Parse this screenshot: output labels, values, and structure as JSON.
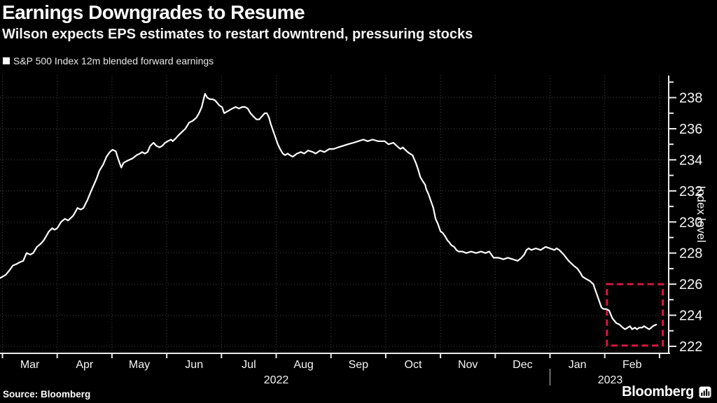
{
  "header": {
    "title": "Earnings Downgrades to Resume",
    "subtitle": "Wilson expects EPS estimates to restart downtrend, pressuring stocks"
  },
  "legend": {
    "label": "S&P 500 Index 12m blended forward earnings",
    "marker_color": "#ffffff"
  },
  "footer": {
    "source": "Source: Bloomberg",
    "brand": "Bloomberg"
  },
  "chart_data": {
    "type": "line",
    "title": "Earnings Downgrades to Resume",
    "subtitle": "Wilson expects EPS estimates to restart downtrend, pressuring stocks",
    "background": "#000000",
    "grid": {
      "style": "dotted",
      "color": "#424242",
      "horizontal": true,
      "vertical": true
    },
    "x_axis": {
      "unit": "months since 2022-03-01",
      "range_months": [
        -0.05,
        12.17
      ],
      "month_ticks": [
        {
          "label": "Mar",
          "center": 0.5
        },
        {
          "label": "Apr",
          "center": 1.5
        },
        {
          "label": "May",
          "center": 2.5
        },
        {
          "label": "Jun",
          "center": 3.5
        },
        {
          "label": "Jul",
          "center": 4.5
        },
        {
          "label": "Aug",
          "center": 5.5
        },
        {
          "label": "Sep",
          "center": 6.5
        },
        {
          "label": "Oct",
          "center": 7.5
        },
        {
          "label": "Nov",
          "center": 8.5
        },
        {
          "label": "Dec",
          "center": 9.5
        },
        {
          "label": "Jan",
          "center": 10.5
        },
        {
          "label": "Feb",
          "center": 11.5
        }
      ],
      "year_labels": [
        {
          "label": "2022",
          "center": 5.0
        },
        {
          "label": "2023",
          "center": 11.1
        }
      ],
      "year_separator_month": 10
    },
    "y_axis": {
      "label": "Index level",
      "side": "right",
      "ticks": [
        222,
        224,
        226,
        228,
        230,
        232,
        234,
        236,
        238
      ],
      "minor_ticks": [
        223,
        225,
        227,
        229,
        231,
        233,
        235,
        237,
        239
      ],
      "range": [
        221.55,
        239.4
      ]
    },
    "highlight_box": {
      "x0_month": 11.04,
      "x1_month": 12.06,
      "v0": 222.05,
      "v1": 226.0,
      "color": "#d81540",
      "style": "dashed"
    },
    "series": [
      {
        "name": "S&P 500 Index 12m blended forward earnings",
        "color": "#ffffff",
        "points": [
          [
            -0.04,
            226.4
          ],
          [
            0.06,
            226.6
          ],
          [
            0.13,
            226.9
          ],
          [
            0.19,
            227.2
          ],
          [
            0.26,
            227.3
          ],
          [
            0.31,
            227.4
          ],
          [
            0.38,
            227.5
          ],
          [
            0.44,
            228.0
          ],
          [
            0.51,
            227.9
          ],
          [
            0.56,
            228.0
          ],
          [
            0.63,
            228.4
          ],
          [
            0.7,
            228.6
          ],
          [
            0.75,
            228.8
          ],
          [
            0.8,
            229.1
          ],
          [
            0.85,
            229.4
          ],
          [
            0.91,
            229.6
          ],
          [
            0.95,
            229.5
          ],
          [
            1.0,
            229.6
          ],
          [
            1.07,
            230.0
          ],
          [
            1.14,
            230.2
          ],
          [
            1.2,
            230.1
          ],
          [
            1.29,
            230.4
          ],
          [
            1.34,
            230.7
          ],
          [
            1.37,
            230.9
          ],
          [
            1.43,
            230.8
          ],
          [
            1.48,
            230.9
          ],
          [
            1.52,
            231.2
          ],
          [
            1.55,
            231.4
          ],
          [
            1.62,
            232.0
          ],
          [
            1.67,
            232.4
          ],
          [
            1.72,
            232.8
          ],
          [
            1.77,
            233.3
          ],
          [
            1.84,
            233.7
          ],
          [
            1.9,
            234.2
          ],
          [
            1.96,
            234.5
          ],
          [
            2.01,
            234.65
          ],
          [
            2.07,
            234.55
          ],
          [
            2.1,
            234.2
          ],
          [
            2.14,
            233.8
          ],
          [
            2.17,
            233.5
          ],
          [
            2.21,
            233.8
          ],
          [
            2.26,
            233.9
          ],
          [
            2.32,
            234.0
          ],
          [
            2.38,
            234.1
          ],
          [
            2.45,
            234.3
          ],
          [
            2.51,
            234.4
          ],
          [
            2.55,
            234.5
          ],
          [
            2.6,
            234.4
          ],
          [
            2.65,
            234.5
          ],
          [
            2.7,
            234.9
          ],
          [
            2.76,
            235.1
          ],
          [
            2.81,
            234.9
          ],
          [
            2.87,
            234.8
          ],
          [
            2.92,
            234.9
          ],
          [
            2.97,
            235.1
          ],
          [
            3.02,
            235.2
          ],
          [
            3.08,
            235.3
          ],
          [
            3.11,
            235.2
          ],
          [
            3.17,
            235.4
          ],
          [
            3.22,
            235.6
          ],
          [
            3.28,
            235.8
          ],
          [
            3.34,
            236.0
          ],
          [
            3.41,
            236.4
          ],
          [
            3.47,
            236.5
          ],
          [
            3.54,
            236.7
          ],
          [
            3.59,
            237.0
          ],
          [
            3.64,
            237.4
          ],
          [
            3.68,
            238.0
          ],
          [
            3.7,
            238.25
          ],
          [
            3.74,
            238.0
          ],
          [
            3.79,
            237.9
          ],
          [
            3.84,
            237.9
          ],
          [
            3.89,
            237.8
          ],
          [
            3.96,
            237.5
          ],
          [
            4.01,
            237.4
          ],
          [
            4.05,
            237.0
          ],
          [
            4.1,
            237.1
          ],
          [
            4.15,
            237.2
          ],
          [
            4.2,
            237.3
          ],
          [
            4.26,
            237.4
          ],
          [
            4.32,
            237.3
          ],
          [
            4.38,
            237.4
          ],
          [
            4.43,
            237.4
          ],
          [
            4.48,
            237.3
          ],
          [
            4.53,
            237.0
          ],
          [
            4.58,
            236.8
          ],
          [
            4.64,
            236.6
          ],
          [
            4.69,
            236.6
          ],
          [
            4.74,
            236.8
          ],
          [
            4.79,
            237.0
          ],
          [
            4.83,
            237.0
          ],
          [
            4.87,
            236.7
          ],
          [
            4.9,
            236.3
          ],
          [
            4.94,
            235.9
          ],
          [
            4.99,
            235.4
          ],
          [
            5.03,
            235.0
          ],
          [
            5.07,
            234.7
          ],
          [
            5.12,
            234.4
          ],
          [
            5.16,
            234.3
          ],
          [
            5.21,
            234.4
          ],
          [
            5.25,
            234.3
          ],
          [
            5.3,
            234.2
          ],
          [
            5.34,
            234.3
          ],
          [
            5.38,
            234.4
          ],
          [
            5.45,
            234.5
          ],
          [
            5.51,
            234.4
          ],
          [
            5.58,
            234.6
          ],
          [
            5.67,
            234.5
          ],
          [
            5.72,
            234.4
          ],
          [
            5.8,
            234.6
          ],
          [
            5.88,
            234.5
          ],
          [
            5.97,
            234.7
          ],
          [
            6.05,
            234.7
          ],
          [
            6.13,
            234.8
          ],
          [
            6.22,
            234.9
          ],
          [
            6.31,
            235.0
          ],
          [
            6.41,
            235.1
          ],
          [
            6.5,
            235.2
          ],
          [
            6.59,
            235.3
          ],
          [
            6.67,
            235.2
          ],
          [
            6.76,
            235.3
          ],
          [
            6.86,
            235.2
          ],
          [
            6.98,
            235.2
          ],
          [
            7.05,
            235.0
          ],
          [
            7.14,
            235.1
          ],
          [
            7.23,
            234.8
          ],
          [
            7.27,
            234.7
          ],
          [
            7.31,
            234.8
          ],
          [
            7.4,
            234.5
          ],
          [
            7.44,
            234.4
          ],
          [
            7.49,
            234.3
          ],
          [
            7.55,
            233.8
          ],
          [
            7.59,
            233.4
          ],
          [
            7.63,
            232.9
          ],
          [
            7.68,
            232.6
          ],
          [
            7.72,
            232.4
          ],
          [
            7.74,
            232.1
          ],
          [
            7.78,
            231.8
          ],
          [
            7.82,
            231.4
          ],
          [
            7.87,
            230.9
          ],
          [
            7.91,
            230.2
          ],
          [
            7.95,
            229.9
          ],
          [
            8.0,
            229.4
          ],
          [
            8.04,
            229.3
          ],
          [
            8.08,
            229.1
          ],
          [
            8.13,
            228.8
          ],
          [
            8.16,
            228.7
          ],
          [
            8.2,
            228.5
          ],
          [
            8.25,
            228.4
          ],
          [
            8.29,
            228.2
          ],
          [
            8.33,
            228.1
          ],
          [
            8.4,
            228.1
          ],
          [
            8.47,
            228.0
          ],
          [
            8.56,
            228.1
          ],
          [
            8.65,
            228.0
          ],
          [
            8.74,
            228.1
          ],
          [
            8.82,
            228.0
          ],
          [
            8.89,
            228.1
          ],
          [
            8.97,
            227.7
          ],
          [
            9.06,
            227.7
          ],
          [
            9.15,
            227.6
          ],
          [
            9.23,
            227.7
          ],
          [
            9.32,
            227.6
          ],
          [
            9.41,
            227.5
          ],
          [
            9.48,
            227.7
          ],
          [
            9.53,
            227.9
          ],
          [
            9.57,
            228.2
          ],
          [
            9.61,
            228.3
          ],
          [
            9.66,
            228.2
          ],
          [
            9.74,
            228.3
          ],
          [
            9.83,
            228.2
          ],
          [
            9.92,
            228.4
          ],
          [
            10.0,
            228.3
          ],
          [
            10.08,
            228.2
          ],
          [
            10.12,
            228.3
          ],
          [
            10.17,
            228.2
          ],
          [
            10.25,
            227.9
          ],
          [
            10.34,
            227.5
          ],
          [
            10.43,
            227.2
          ],
          [
            10.5,
            227.0
          ],
          [
            10.56,
            226.7
          ],
          [
            10.59,
            226.5
          ],
          [
            10.63,
            226.4
          ],
          [
            10.68,
            226.3
          ],
          [
            10.73,
            226.2
          ],
          [
            10.79,
            226.0
          ],
          [
            10.82,
            225.7
          ],
          [
            10.86,
            225.3
          ],
          [
            10.9,
            224.9
          ],
          [
            10.94,
            224.5
          ],
          [
            10.98,
            224.4
          ],
          [
            11.03,
            224.4
          ],
          [
            11.08,
            224.3
          ],
          [
            11.14,
            223.8
          ],
          [
            11.21,
            223.5
          ],
          [
            11.27,
            223.4
          ],
          [
            11.33,
            223.2
          ],
          [
            11.37,
            223.1
          ],
          [
            11.42,
            223.2
          ],
          [
            11.46,
            223.3
          ],
          [
            11.5,
            223.1
          ],
          [
            11.55,
            223.2
          ],
          [
            11.59,
            223.1
          ],
          [
            11.63,
            223.2
          ],
          [
            11.68,
            223.2
          ],
          [
            11.72,
            223.3
          ],
          [
            11.76,
            223.2
          ],
          [
            11.81,
            223.1
          ],
          [
            11.85,
            223.2
          ],
          [
            11.88,
            223.3
          ],
          [
            11.94,
            223.4
          ]
        ]
      }
    ]
  }
}
